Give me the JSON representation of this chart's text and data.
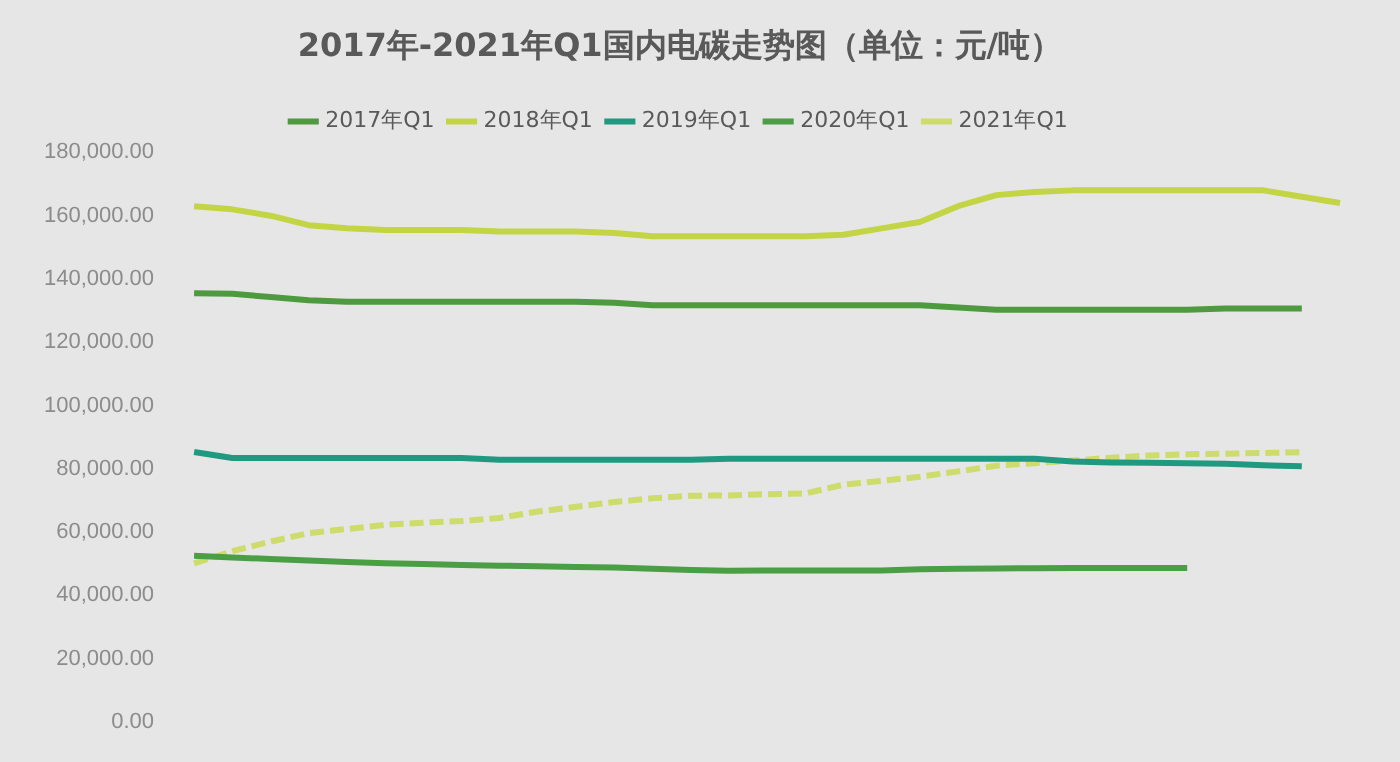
{
  "chart_data": {
    "type": "line",
    "title": "2017年-2021年Q1国内电碳走势图（单位：元/吨）",
    "categories": [
      null,
      null,
      null,
      null,
      null,
      null,
      null,
      null,
      null,
      null,
      null,
      null,
      null,
      null,
      null,
      null,
      null,
      null,
      null,
      null,
      null,
      null,
      null,
      null,
      null,
      null,
      null,
      null,
      null,
      null,
      null
    ],
    "series": [
      {
        "name": "2017年Q1",
        "color": "#4e9a3e",
        "values": [
          135500,
          135300,
          134300,
          133300,
          132800,
          132800,
          132800,
          132800,
          132800,
          132800,
          132800,
          132500,
          131700,
          131700,
          131700,
          131700,
          131700,
          131700,
          131700,
          131700,
          131000,
          130300,
          130300,
          130300,
          130300,
          130300,
          130300,
          130700,
          130700,
          130700,
          null
        ]
      },
      {
        "name": "2018年Q1",
        "color": "#c3d545",
        "values": [
          163000,
          162000,
          160000,
          157000,
          156000,
          155500,
          155500,
          155500,
          155000,
          155000,
          155000,
          154500,
          153500,
          153500,
          153500,
          153500,
          153500,
          154000,
          156000,
          158000,
          163000,
          166500,
          167500,
          168000,
          168000,
          168000,
          168000,
          168000,
          168000,
          166000,
          164000
        ]
      },
      {
        "name": "2019年Q1",
        "color": "#1f9a80",
        "values": [
          85300,
          83400,
          83400,
          83400,
          83400,
          83400,
          83400,
          83400,
          82900,
          82900,
          82900,
          82900,
          82900,
          82900,
          83200,
          83200,
          83200,
          83200,
          83200,
          83200,
          83200,
          83200,
          83200,
          82300,
          82000,
          81900,
          81800,
          81600,
          81100,
          80800,
          null
        ]
      },
      {
        "name": "2020年Q1",
        "color": "#4a9e44",
        "values": [
          52500,
          52000,
          51500,
          51000,
          50600,
          50200,
          49900,
          49600,
          49400,
          49200,
          49000,
          48800,
          48400,
          48000,
          47800,
          47900,
          47900,
          47900,
          47900,
          48300,
          48400,
          48500,
          48600,
          48700,
          48700,
          48700,
          48700,
          null,
          null,
          null,
          null
        ]
      },
      {
        "name": "2021年Q1",
        "color": "#cddc6a",
        "line_style": "dashed",
        "values": [
          50100,
          54000,
          57000,
          59700,
          61000,
          62300,
          63000,
          63500,
          64500,
          66500,
          68000,
          69500,
          70700,
          71500,
          71600,
          72000,
          72200,
          75000,
          76200,
          77500,
          79200,
          81000,
          81800,
          82600,
          83500,
          84200,
          84600,
          84800,
          85000,
          85300,
          null
        ]
      }
    ],
    "ylim": [
      0,
      180000
    ],
    "yticks": [
      {
        "value": 0,
        "label": "0.00"
      },
      {
        "value": 20000,
        "label": "20,000.00"
      },
      {
        "value": 40000,
        "label": "40,000.00"
      },
      {
        "value": 60000,
        "label": "60,000.00"
      },
      {
        "value": 80000,
        "label": "80,000.00"
      },
      {
        "value": 100000,
        "label": "100,000.00"
      },
      {
        "value": 120000,
        "label": "120,000.00"
      },
      {
        "value": 140000,
        "label": "140,000.00"
      },
      {
        "value": 160000,
        "label": "160,000.00"
      },
      {
        "value": 180000,
        "label": "180,000.00"
      }
    ],
    "grid": false,
    "legend": "top",
    "marker": "none",
    "tick_labels": "y"
  }
}
